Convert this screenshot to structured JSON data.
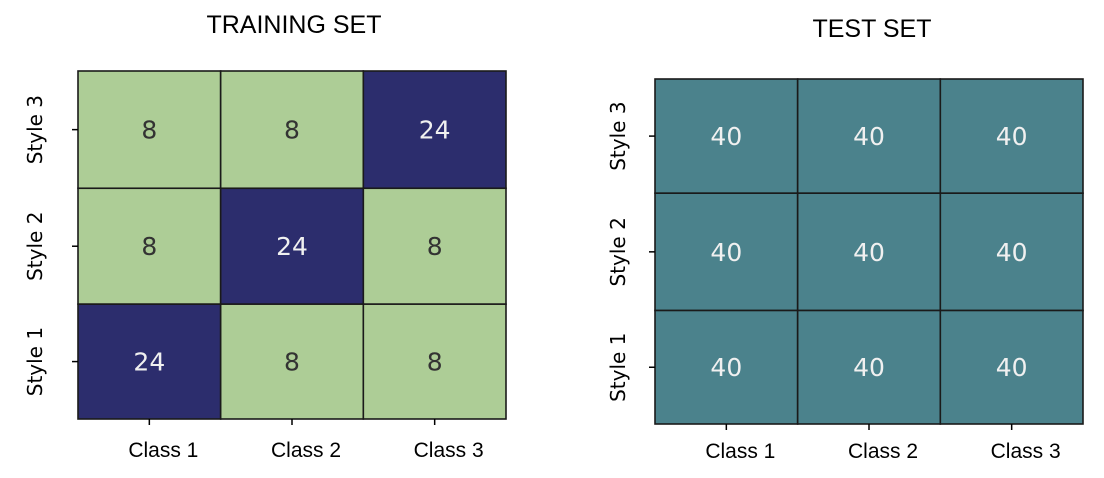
{
  "chart_data": [
    {
      "type": "heatmap",
      "title": "TRAINING SET",
      "x_categories": [
        "Class 1",
        "Class 2",
        "Class 3"
      ],
      "y_categories": [
        "Style 1",
        "Style 2",
        "Style 3"
      ],
      "values": [
        [
          24,
          8,
          8
        ],
        [
          8,
          24,
          8
        ],
        [
          8,
          8,
          24
        ]
      ],
      "colors": {
        "low": "#adcd96",
        "high": "#2c2d6d",
        "low_text": "#333333",
        "high_text": "#f0f0f0",
        "grid": "#1a1a1a"
      },
      "grid": true,
      "legend": "none"
    },
    {
      "type": "heatmap",
      "title": "TEST SET",
      "x_categories": [
        "Class 1",
        "Class 2",
        "Class 3"
      ],
      "y_categories": [
        "Style 1",
        "Style 2",
        "Style 3"
      ],
      "values": [
        [
          40,
          40,
          40
        ],
        [
          40,
          40,
          40
        ],
        [
          40,
          40,
          40
        ]
      ],
      "colors": {
        "fill": "#4b828c",
        "text": "#f0f0f0",
        "grid": "#1a1a1a"
      },
      "grid": true,
      "legend": "none"
    }
  ]
}
